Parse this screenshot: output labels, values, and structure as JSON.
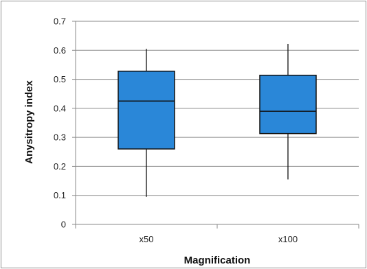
{
  "chart_data": {
    "type": "box",
    "title": "",
    "xlabel": "Magnification",
    "ylabel": "Anysitropy index",
    "ylim": [
      0,
      0.7
    ],
    "yticks": [
      "0",
      "0.1",
      "0.2",
      "0.3",
      "0.4",
      "0.5",
      "0.6",
      "0.7"
    ],
    "grid": true,
    "legend": "none",
    "box_color": "#2a87d8",
    "categories": [
      "x50",
      "x100"
    ],
    "boxes": [
      {
        "category": "x50",
        "min": 0.095,
        "q1": 0.26,
        "median": 0.425,
        "q3": 0.528,
        "max": 0.605
      },
      {
        "category": "x100",
        "min": 0.155,
        "q1": 0.313,
        "median": 0.39,
        "q3": 0.514,
        "max": 0.622
      }
    ]
  }
}
